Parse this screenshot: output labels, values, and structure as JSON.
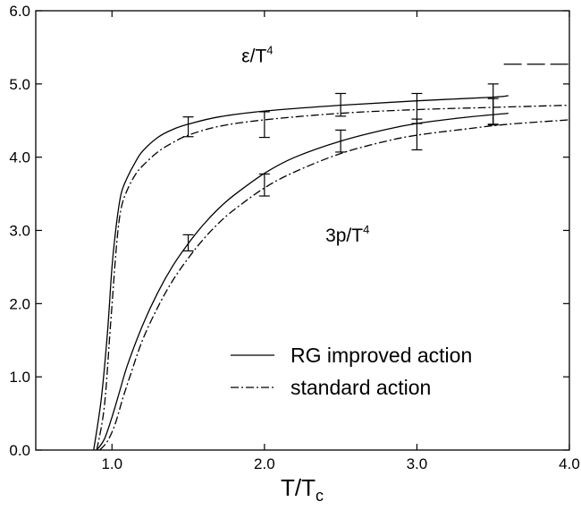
{
  "chart_data": {
    "type": "line",
    "title": "",
    "xlabel": "T/T",
    "xlabel_sub": "c",
    "ylabel": "",
    "xlim": [
      0.5,
      4.0
    ],
    "ylim": [
      0.0,
      6.0
    ],
    "x_ticks": [
      {
        "v": 1.0,
        "label": "1.0"
      },
      {
        "v": 2.0,
        "label": "2.0"
      },
      {
        "v": 3.0,
        "label": "3.0"
      },
      {
        "v": 4.0,
        "label": "4.0"
      }
    ],
    "y_ticks": [
      {
        "v": 0.0,
        "label": "0.0"
      },
      {
        "v": 1.0,
        "label": "1.0"
      },
      {
        "v": 2.0,
        "label": "2.0"
      },
      {
        "v": 3.0,
        "label": "3.0"
      },
      {
        "v": 4.0,
        "label": "4.0"
      },
      {
        "v": 5.0,
        "label": "5.0"
      },
      {
        "v": 6.0,
        "label": "6.0"
      }
    ],
    "grid": false,
    "legend_position": "lower-right",
    "legend": [
      {
        "label": "RG improved action",
        "style": "solid"
      },
      {
        "label": "standard action",
        "style": "dashdot"
      }
    ],
    "annotations": [
      {
        "base": "ε/T",
        "sup": "4",
        "x": 1.85,
        "y": 5.3
      },
      {
        "base": "3p/T",
        "sup": "4",
        "x": 2.4,
        "y": 2.85
      }
    ],
    "series": [
      {
        "quantity": "energy density",
        "style": "solid",
        "x": [
          0.88,
          0.93,
          0.97,
          1.0,
          1.03,
          1.06,
          1.1,
          1.15,
          1.2,
          1.3,
          1.4,
          1.5,
          1.7,
          2.0,
          2.5,
          3.0,
          3.5,
          3.6
        ],
        "y": [
          0.0,
          0.7,
          1.6,
          2.5,
          3.1,
          3.5,
          3.72,
          3.92,
          4.08,
          4.27,
          4.38,
          4.45,
          4.55,
          4.63,
          4.71,
          4.77,
          4.82,
          4.84
        ]
      },
      {
        "quantity": "energy density",
        "style": "dashdot",
        "x": [
          0.9,
          0.95,
          0.99,
          1.03,
          1.06,
          1.1,
          1.15,
          1.2,
          1.3,
          1.4,
          1.5,
          1.7,
          2.0,
          2.5,
          3.0,
          3.5,
          4.0
        ],
        "y": [
          0.0,
          0.6,
          1.7,
          2.8,
          3.3,
          3.55,
          3.75,
          3.88,
          4.07,
          4.2,
          4.3,
          4.42,
          4.51,
          4.6,
          4.65,
          4.68,
          4.71
        ]
      },
      {
        "quantity": "pressure",
        "style": "solid",
        "x": [
          0.9,
          0.95,
          1.0,
          1.05,
          1.1,
          1.2,
          1.3,
          1.4,
          1.5,
          1.6,
          1.7,
          1.8,
          2.0,
          2.2,
          2.5,
          2.8,
          3.0,
          3.3,
          3.6
        ],
        "y": [
          0.0,
          0.15,
          0.45,
          0.8,
          1.15,
          1.7,
          2.15,
          2.52,
          2.82,
          3.08,
          3.3,
          3.48,
          3.78,
          4.0,
          4.22,
          4.38,
          4.46,
          4.54,
          4.6
        ]
      },
      {
        "quantity": "pressure",
        "style": "dashdot",
        "x": [
          0.92,
          0.97,
          1.02,
          1.07,
          1.12,
          1.2,
          1.3,
          1.4,
          1.5,
          1.6,
          1.7,
          1.8,
          2.0,
          2.2,
          2.5,
          2.8,
          3.0,
          3.3,
          3.6,
          4.0
        ],
        "y": [
          0.0,
          0.12,
          0.35,
          0.7,
          1.02,
          1.5,
          1.95,
          2.32,
          2.62,
          2.88,
          3.1,
          3.28,
          3.58,
          3.8,
          4.05,
          4.22,
          4.3,
          4.38,
          4.45,
          4.51
        ]
      }
    ],
    "error_bars": [
      {
        "x": 1.5,
        "y": 4.42,
        "low": 4.28,
        "high": 4.55
      },
      {
        "x": 2.0,
        "y": 4.47,
        "low": 4.27,
        "high": 4.62
      },
      {
        "x": 2.5,
        "y": 4.72,
        "low": 4.56,
        "high": 4.87
      },
      {
        "x": 3.0,
        "y": 4.67,
        "low": 4.46,
        "high": 4.87
      },
      {
        "x": 3.5,
        "y": 4.73,
        "low": 4.44,
        "high": 5.0
      },
      {
        "x": 1.5,
        "y": 2.82,
        "low": 2.72,
        "high": 2.94
      },
      {
        "x": 2.0,
        "y": 3.6,
        "low": 3.47,
        "high": 3.77
      },
      {
        "x": 2.5,
        "y": 4.22,
        "low": 4.07,
        "high": 4.37
      },
      {
        "x": 3.0,
        "y": 4.35,
        "low": 4.1,
        "high": 4.52
      },
      {
        "x": 3.5,
        "y": 4.63,
        "low": 4.45,
        "high": 4.8
      }
    ],
    "reference_line": {
      "style": "dashed",
      "y": 5.27,
      "x_from": 3.57,
      "x_to": 4.0
    }
  }
}
